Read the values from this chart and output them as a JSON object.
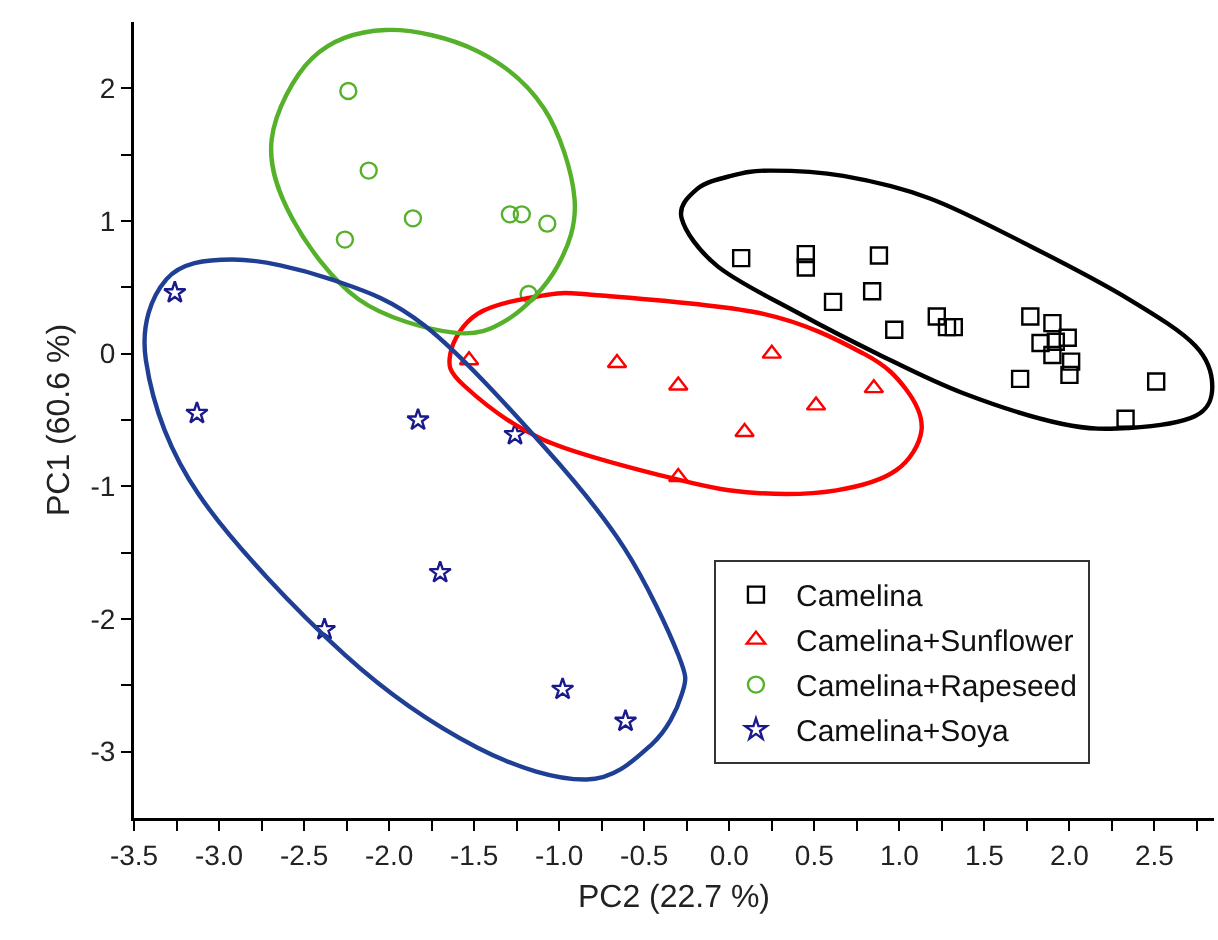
{
  "chart_data": {
    "type": "scatter",
    "xlabel": "PC2 (22.7 %)",
    "ylabel": "PC1 (60.6 %)",
    "xlim": [
      -3.5,
      2.85
    ],
    "ylim": [
      -3.5,
      2.5
    ],
    "xticks": [
      {
        "value": -3.5,
        "label": "-3.5"
      },
      {
        "value": -3.25,
        "label": null
      },
      {
        "value": -3,
        "label": "-3.0"
      },
      {
        "value": -2.75,
        "label": null
      },
      {
        "value": -2.5,
        "label": "-2.5"
      },
      {
        "value": -2.25,
        "label": null
      },
      {
        "value": -2,
        "label": "-2.0"
      },
      {
        "value": -1.75,
        "label": null
      },
      {
        "value": -1.5,
        "label": "-1.5"
      },
      {
        "value": -1.25,
        "label": null
      },
      {
        "value": -1,
        "label": "-1.0"
      },
      {
        "value": -0.75,
        "label": null
      },
      {
        "value": -0.5,
        "label": "-0.5"
      },
      {
        "value": -0.25,
        "label": null
      },
      {
        "value": 0,
        "label": "0.0"
      },
      {
        "value": 0.25,
        "label": null
      },
      {
        "value": 0.5,
        "label": "0.5"
      },
      {
        "value": 0.75,
        "label": null
      },
      {
        "value": 1,
        "label": "1.0"
      },
      {
        "value": 1.25,
        "label": null
      },
      {
        "value": 1.5,
        "label": "1.5"
      },
      {
        "value": 1.75,
        "label": null
      },
      {
        "value": 2,
        "label": "2.0"
      },
      {
        "value": 2.25,
        "label": null
      },
      {
        "value": 2.5,
        "label": "2.5"
      },
      {
        "value": 2.75,
        "label": null
      }
    ],
    "yticks": [
      -3,
      {
        "value": -2.5,
        "label": null
      },
      -2,
      {
        "value": -1.5,
        "label": null
      },
      -1,
      {
        "value": -0.5,
        "label": null
      },
      0,
      {
        "value": 0.5,
        "label": null
      },
      1,
      {
        "value": 1.5,
        "label": null
      },
      2
    ],
    "grid": false,
    "legend": "bottom right",
    "series": [
      {
        "name": "Camelina",
        "color": "#000000",
        "marker": "square",
        "x": [
          0.07,
          0.45,
          0.45,
          0.88,
          0.61,
          0.84,
          0.97,
          1.22,
          1.28,
          1.32,
          1.77,
          1.9,
          1.83,
          1.92,
          1.99,
          1.9,
          2.01,
          2.0,
          1.71,
          2.51,
          2.33
        ],
        "values": [
          0.72,
          0.75,
          0.65,
          0.74,
          0.39,
          0.47,
          0.18,
          0.28,
          0.2,
          0.2,
          0.28,
          0.23,
          0.08,
          0.09,
          0.12,
          -0.01,
          -0.06,
          -0.16,
          -0.19,
          -0.21,
          -0.49
        ]
      },
      {
        "name": "Camelina+Sunflower",
        "color": "#ff0000",
        "marker": "triangle",
        "x": [
          -1.53,
          -0.66,
          -0.3,
          0.25,
          0.51,
          0.85,
          0.09,
          -0.3
        ],
        "values": [
          -0.05,
          -0.07,
          -0.24,
          0.0,
          -0.39,
          -0.26,
          -0.59,
          -0.93
        ]
      },
      {
        "name": "Camelina+Rapeseed",
        "color": "#55b02a",
        "marker": "circle",
        "x": [
          -2.24,
          -2.12,
          -1.86,
          -2.26,
          -1.29,
          -1.22,
          -1.07,
          -1.18
        ],
        "values": [
          1.98,
          1.38,
          1.02,
          0.86,
          1.05,
          1.05,
          0.98,
          0.45
        ]
      },
      {
        "name": "Camelina+Soya",
        "color": "#1a1a8c",
        "marker": "star",
        "x": [
          -3.26,
          -3.13,
          -1.83,
          -1.26,
          -1.7,
          -2.38,
          -0.98,
          -0.61
        ],
        "values": [
          0.46,
          -0.45,
          -0.5,
          -0.61,
          -1.65,
          -2.08,
          -2.53,
          -2.77
        ]
      }
    ]
  }
}
